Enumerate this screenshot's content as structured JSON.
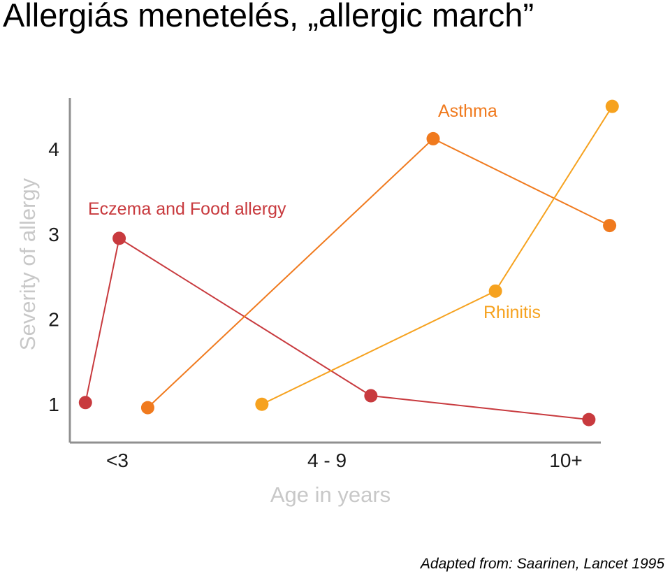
{
  "title": "Allergiás menetelés, „allergic march”",
  "source": "Adapted from: Saarinen, Lancet 1995",
  "colors": {
    "eczema": "#c83a3e",
    "asthma": "#f07a1e",
    "rhinitis": "#f6a21f",
    "axis": "#909090",
    "axis_title": "#c8c8c8"
  },
  "chart_data": {
    "type": "line",
    "xlabel": "Age in years",
    "ylabel": "Severity of allergy",
    "x_tick_labels": [
      "<3",
      "4 - 9",
      "10+"
    ],
    "y_tick_labels": [
      "1",
      "2",
      "3",
      "4"
    ],
    "xlim": [
      0,
      10.5
    ],
    "ylim": [
      0.55,
      4.6
    ],
    "grid": false,
    "series": [
      {
        "name": "Eczema and Food allergy",
        "color": "#c83a3e",
        "points": [
          {
            "x": 0.3,
            "y": 1.02
          },
          {
            "x": 0.95,
            "y": 2.95
          },
          {
            "x": 5.8,
            "y": 1.1
          },
          {
            "x": 10.0,
            "y": 0.82
          }
        ]
      },
      {
        "name": "Asthma",
        "color": "#f07a1e",
        "points": [
          {
            "x": 1.5,
            "y": 0.96
          },
          {
            "x": 7.0,
            "y": 4.12
          },
          {
            "x": 10.4,
            "y": 3.1
          }
        ]
      },
      {
        "name": "Rhinitis",
        "color": "#f6a21f",
        "points": [
          {
            "x": 3.7,
            "y": 1.0
          },
          {
            "x": 8.2,
            "y": 2.33
          },
          {
            "x": 10.45,
            "y": 4.5
          }
        ]
      }
    ]
  }
}
